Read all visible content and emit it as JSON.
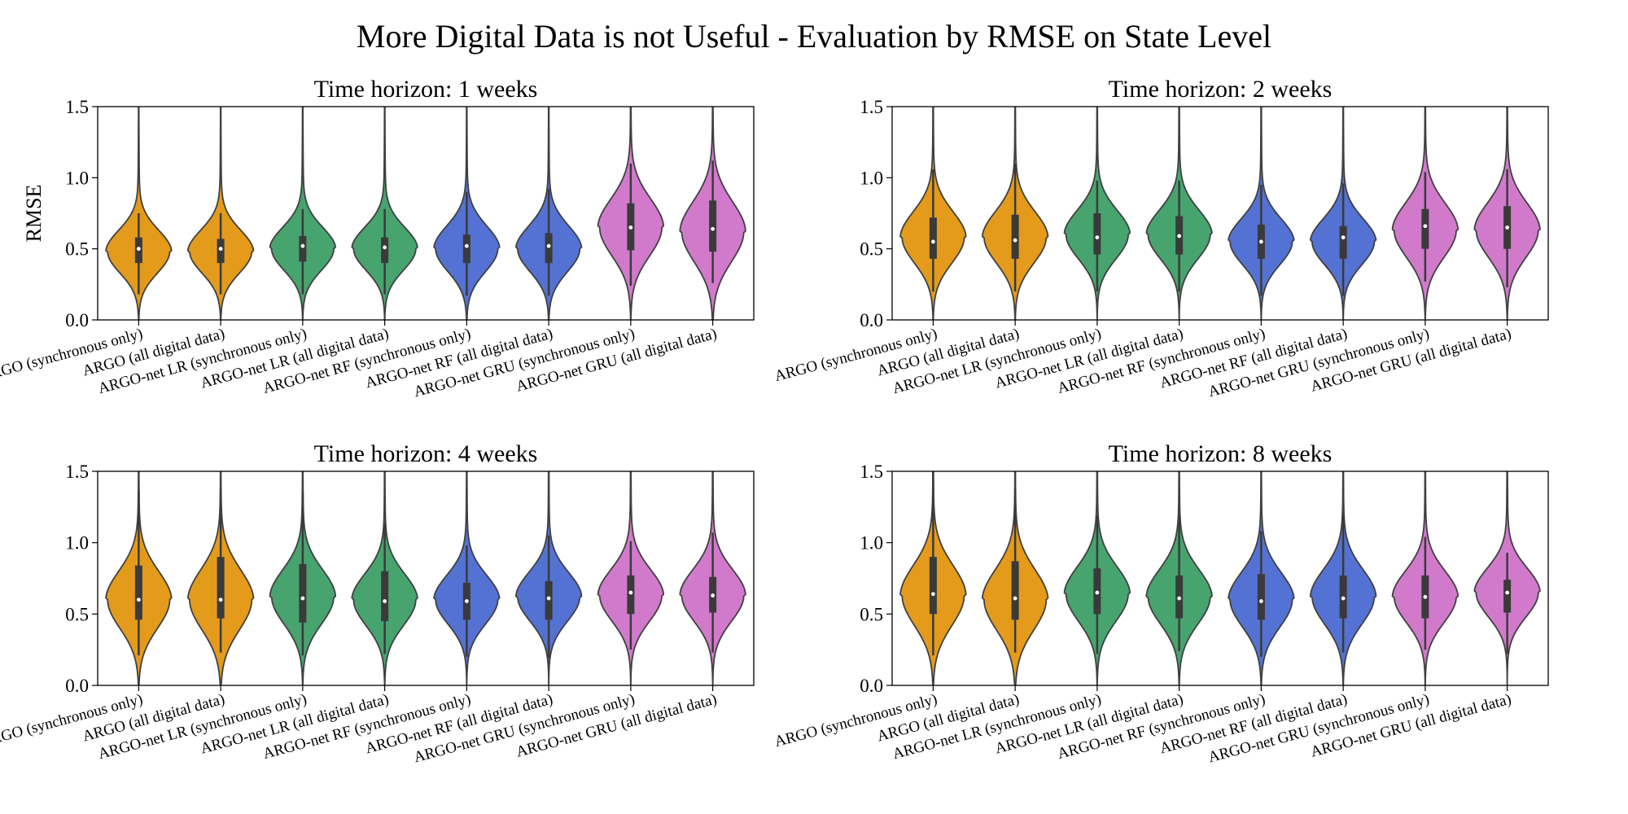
{
  "figure": {
    "title": "More Digital Data is not Useful - Evaluation by RMSE on State Level"
  },
  "colors": {
    "orange": "#E49B1C",
    "green": "#47A46E",
    "blue": "#5472D3",
    "pink": "#D17ACC",
    "outline": "#404040"
  },
  "chart_data": [
    {
      "type": "violin",
      "title": "Time horizon: 1 weeks",
      "xlabel": "",
      "ylabel": "RMSE",
      "ylim": [
        0,
        1.5
      ],
      "yticks": [
        "0.0",
        "0.5",
        "1.0",
        "1.5"
      ],
      "categories": [
        "ARGO (synchronous only)",
        "ARGO (all digital data)",
        "ARGO-net LR (synchronous only)",
        "ARGO-net LR (all digital data)",
        "ARGO-net RF (synchronous only)",
        "ARGO-net RF (all digital data)",
        "ARGO-net GRU (synchronous only)",
        "ARGO-net GRU (all digital data)"
      ],
      "series": [
        {
          "color": "orange",
          "median": 0.5,
          "q1": 0.4,
          "q3": 0.58,
          "whisker_low": 0.18,
          "whisker_high": 0.75,
          "mode": 0.48,
          "spread": 0.15,
          "min": 0.0,
          "max": 1.5
        },
        {
          "color": "orange",
          "median": 0.5,
          "q1": 0.4,
          "q3": 0.57,
          "whisker_low": 0.18,
          "whisker_high": 0.75,
          "mode": 0.48,
          "spread": 0.15,
          "min": 0.0,
          "max": 1.5
        },
        {
          "color": "green",
          "median": 0.52,
          "q1": 0.41,
          "q3": 0.59,
          "whisker_low": 0.18,
          "whisker_high": 0.78,
          "mode": 0.5,
          "spread": 0.15,
          "min": 0.0,
          "max": 1.5
        },
        {
          "color": "green",
          "median": 0.51,
          "q1": 0.4,
          "q3": 0.58,
          "whisker_low": 0.18,
          "whisker_high": 0.78,
          "mode": 0.5,
          "spread": 0.15,
          "min": 0.0,
          "max": 1.5
        },
        {
          "color": "blue",
          "median": 0.52,
          "q1": 0.4,
          "q3": 0.6,
          "whisker_low": 0.17,
          "whisker_high": 0.9,
          "mode": 0.5,
          "spread": 0.16,
          "min": 0.0,
          "max": 1.5
        },
        {
          "color": "blue",
          "median": 0.52,
          "q1": 0.4,
          "q3": 0.61,
          "whisker_low": 0.17,
          "whisker_high": 0.92,
          "mode": 0.5,
          "spread": 0.16,
          "min": 0.0,
          "max": 1.5
        },
        {
          "color": "pink",
          "median": 0.65,
          "q1": 0.49,
          "q3": 0.82,
          "whisker_low": 0.24,
          "whisker_high": 1.1,
          "mode": 0.65,
          "spread": 0.2,
          "min": 0.0,
          "max": 1.5
        },
        {
          "color": "pink",
          "median": 0.64,
          "q1": 0.48,
          "q3": 0.84,
          "whisker_low": 0.26,
          "whisker_high": 1.12,
          "mode": 0.62,
          "spread": 0.21,
          "min": 0.0,
          "max": 1.5
        }
      ]
    },
    {
      "type": "violin",
      "title": "Time horizon: 2 weeks",
      "xlabel": "",
      "ylabel": "",
      "ylim": [
        0,
        1.5
      ],
      "yticks": [
        "0.0",
        "0.5",
        "1.0",
        "1.5"
      ],
      "categories": [
        "ARGO (synchronous only)",
        "ARGO (all digital data)",
        "ARGO-net LR (synchronous only)",
        "ARGO-net LR (all digital data)",
        "ARGO-net RF (synchronous only)",
        "ARGO-net RF (all digital data)",
        "ARGO-net GRU (synchronous only)",
        "ARGO-net GRU (all digital data)"
      ],
      "series": [
        {
          "color": "orange",
          "median": 0.55,
          "q1": 0.43,
          "q3": 0.72,
          "whisker_low": 0.2,
          "whisker_high": 1.06,
          "mode": 0.58,
          "spread": 0.18,
          "min": 0.0,
          "max": 1.5
        },
        {
          "color": "orange",
          "median": 0.56,
          "q1": 0.43,
          "q3": 0.74,
          "whisker_low": 0.2,
          "whisker_high": 1.1,
          "mode": 0.58,
          "spread": 0.18,
          "min": 0.0,
          "max": 1.5
        },
        {
          "color": "green",
          "median": 0.58,
          "q1": 0.46,
          "q3": 0.75,
          "whisker_low": 0.2,
          "whisker_high": 0.98,
          "mode": 0.6,
          "spread": 0.17,
          "min": 0.0,
          "max": 1.5
        },
        {
          "color": "green",
          "median": 0.59,
          "q1": 0.46,
          "q3": 0.73,
          "whisker_low": 0.2,
          "whisker_high": 0.98,
          "mode": 0.6,
          "spread": 0.17,
          "min": 0.0,
          "max": 1.5
        },
        {
          "color": "blue",
          "median": 0.55,
          "q1": 0.43,
          "q3": 0.67,
          "whisker_low": 0.17,
          "whisker_high": 0.95,
          "mode": 0.55,
          "spread": 0.16,
          "min": 0.0,
          "max": 1.5
        },
        {
          "color": "blue",
          "median": 0.58,
          "q1": 0.43,
          "q3": 0.66,
          "whisker_low": 0.17,
          "whisker_high": 0.96,
          "mode": 0.55,
          "spread": 0.16,
          "min": 0.0,
          "max": 1.5
        },
        {
          "color": "pink",
          "median": 0.66,
          "q1": 0.5,
          "q3": 0.78,
          "whisker_low": 0.27,
          "whisker_high": 1.04,
          "mode": 0.63,
          "spread": 0.19,
          "min": 0.0,
          "max": 1.5
        },
        {
          "color": "pink",
          "median": 0.65,
          "q1": 0.5,
          "q3": 0.8,
          "whisker_low": 0.23,
          "whisker_high": 1.06,
          "mode": 0.63,
          "spread": 0.19,
          "min": 0.0,
          "max": 1.5
        }
      ]
    },
    {
      "type": "violin",
      "title": "Time horizon: 4 weeks",
      "xlabel": "",
      "ylabel": "",
      "ylim": [
        0,
        1.5
      ],
      "yticks": [
        "0.0",
        "0.5",
        "1.0",
        "1.5"
      ],
      "categories": [
        "ARGO (synchronous only)",
        "ARGO (all digital data)",
        "ARGO-net LR (synchronous only)",
        "ARGO-net LR (all digital data)",
        "ARGO-net RF (synchronous only)",
        "ARGO-net RF (all digital data)",
        "ARGO-net GRU (synchronous only)",
        "ARGO-net GRU (all digital data)"
      ],
      "series": [
        {
          "color": "orange",
          "median": 0.6,
          "q1": 0.46,
          "q3": 0.84,
          "whisker_low": 0.21,
          "whisker_high": 1.37,
          "mode": 0.6,
          "spread": 0.2,
          "min": 0.0,
          "max": 1.5
        },
        {
          "color": "orange",
          "median": 0.6,
          "q1": 0.47,
          "q3": 0.9,
          "whisker_low": 0.23,
          "whisker_high": 1.37,
          "mode": 0.6,
          "spread": 0.21,
          "min": 0.0,
          "max": 1.5
        },
        {
          "color": "green",
          "median": 0.61,
          "q1": 0.44,
          "q3": 0.85,
          "whisker_low": 0.21,
          "whisker_high": 1.35,
          "mode": 0.62,
          "spread": 0.19,
          "min": 0.0,
          "max": 1.5
        },
        {
          "color": "green",
          "median": 0.59,
          "q1": 0.45,
          "q3": 0.8,
          "whisker_low": 0.22,
          "whisker_high": 1.14,
          "mode": 0.6,
          "spread": 0.18,
          "min": 0.0,
          "max": 1.5
        },
        {
          "color": "blue",
          "median": 0.59,
          "q1": 0.46,
          "q3": 0.72,
          "whisker_low": 0.2,
          "whisker_high": 0.98,
          "mode": 0.6,
          "spread": 0.17,
          "min": 0.0,
          "max": 1.5
        },
        {
          "color": "blue",
          "median": 0.61,
          "q1": 0.46,
          "q3": 0.73,
          "whisker_low": 0.19,
          "whisker_high": 1.05,
          "mode": 0.62,
          "spread": 0.17,
          "min": 0.0,
          "max": 1.5
        },
        {
          "color": "pink",
          "median": 0.65,
          "q1": 0.5,
          "q3": 0.77,
          "whisker_low": 0.25,
          "whisker_high": 1.01,
          "mode": 0.63,
          "spread": 0.18,
          "min": 0.0,
          "max": 1.5
        },
        {
          "color": "pink",
          "median": 0.63,
          "q1": 0.51,
          "q3": 0.76,
          "whisker_low": 0.23,
          "whisker_high": 1.07,
          "mode": 0.63,
          "spread": 0.18,
          "min": 0.0,
          "max": 1.5
        }
      ]
    },
    {
      "type": "violin",
      "title": "Time horizon: 8 weeks",
      "xlabel": "",
      "ylabel": "",
      "ylim": [
        0,
        1.5
      ],
      "yticks": [
        "0.0",
        "0.5",
        "1.0",
        "1.5"
      ],
      "categories": [
        "ARGO (synchronous only)",
        "ARGO (all digital data)",
        "ARGO-net LR (synchronous only)",
        "ARGO-net LR (all digital data)",
        "ARGO-net RF (synchronous only)",
        "ARGO-net RF (all digital data)",
        "ARGO-net GRU (synchronous only)",
        "ARGO-net GRU (all digital data)"
      ],
      "series": [
        {
          "color": "orange",
          "median": 0.64,
          "q1": 0.5,
          "q3": 0.9,
          "whisker_low": 0.21,
          "whisker_high": 1.5,
          "mode": 0.63,
          "spread": 0.21,
          "min": 0.0,
          "max": 1.5
        },
        {
          "color": "orange",
          "median": 0.61,
          "q1": 0.46,
          "q3": 0.87,
          "whisker_low": 0.23,
          "whisker_high": 1.37,
          "mode": 0.6,
          "spread": 0.21,
          "min": 0.0,
          "max": 1.5
        },
        {
          "color": "green",
          "median": 0.65,
          "q1": 0.5,
          "q3": 0.82,
          "whisker_low": 0.22,
          "whisker_high": 1.19,
          "mode": 0.64,
          "spread": 0.19,
          "min": 0.0,
          "max": 1.5
        },
        {
          "color": "green",
          "median": 0.61,
          "q1": 0.47,
          "q3": 0.77,
          "whisker_low": 0.24,
          "whisker_high": 1.19,
          "mode": 0.62,
          "spread": 0.19,
          "min": 0.0,
          "max": 1.5
        },
        {
          "color": "blue",
          "median": 0.59,
          "q1": 0.46,
          "q3": 0.78,
          "whisker_low": 0.2,
          "whisker_high": 1.08,
          "mode": 0.6,
          "spread": 0.19,
          "min": 0.0,
          "max": 1.5
        },
        {
          "color": "blue",
          "median": 0.61,
          "q1": 0.47,
          "q3": 0.77,
          "whisker_low": 0.23,
          "whisker_high": 1.19,
          "mode": 0.62,
          "spread": 0.19,
          "min": 0.0,
          "max": 1.5
        },
        {
          "color": "pink",
          "median": 0.62,
          "q1": 0.47,
          "q3": 0.77,
          "whisker_low": 0.25,
          "whisker_high": 1.04,
          "mode": 0.62,
          "spread": 0.18,
          "min": 0.0,
          "max": 1.5
        },
        {
          "color": "pink",
          "median": 0.65,
          "q1": 0.51,
          "q3": 0.74,
          "whisker_low": 0.22,
          "whisker_high": 0.93,
          "mode": 0.65,
          "spread": 0.17,
          "min": 0.0,
          "max": 1.5
        }
      ]
    }
  ]
}
